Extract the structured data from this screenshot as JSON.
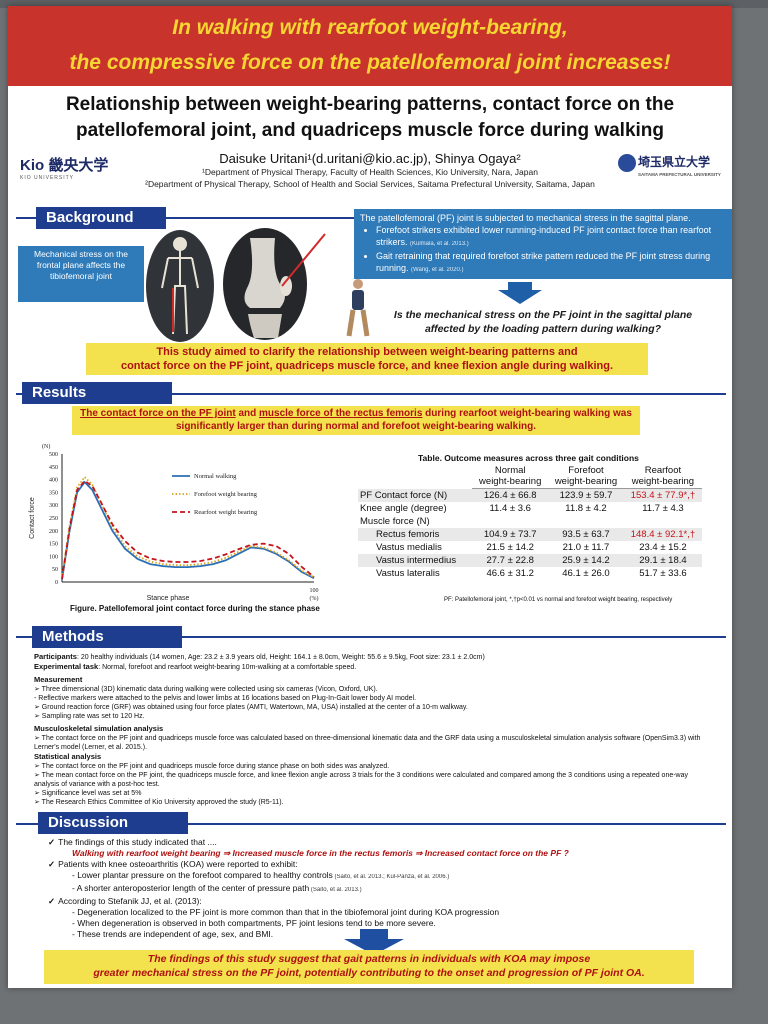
{
  "banner": {
    "line1": "In walking with rearfoot weight-bearing,",
    "line2": "the compressive force on the patellofemoral joint increases!"
  },
  "title": {
    "line1": "Relationship between weight-bearing patterns, contact force on the",
    "line2": "patellofemoral joint, and quadriceps muscle force during walking"
  },
  "authors": "Daisuke Uritani¹(d.uritani@kio.ac.jp), Shinya Ogaya²",
  "affiliations": [
    "¹Department of Physical Therapy, Faculty of Health Sciences, Kio University, Nara, Japan",
    "²Department of Physical Therapy, School of Health and Social Services, Saitama Prefectural University, Saitama, Japan"
  ],
  "logos": {
    "left": "Kio 畿央大学",
    "left_sub": "KIO UNIVERSITY",
    "right": "埼玉県立大学",
    "right_sub": "SAITAMA PREFECTURAL UNIVERSITY"
  },
  "background": {
    "heading": "Background",
    "frontal_note": "Mechanical stress on the frontal plane affects the tibiofemoral joint",
    "intro": "The patellofemoral (PF) joint is subjected to mechanical stress in the sagittal plane.",
    "bullets": [
      {
        "text": "Forefoot strikers exhibited lower running-induced PF joint contact force than rearfoot strikers.",
        "cite": "(Kulmala, et al. 2013.)"
      },
      {
        "text": "Gait retraining that required forefoot strike pattern reduced the PF joint stress during running.",
        "cite": "(Wang, et al. 2020.)"
      }
    ],
    "question_line1": "Is the mechanical stress on the PF joint in the sagittal plane",
    "question_line2": "affected by the loading pattern during walking?",
    "aim_line1": "This study aimed to clarify the relationship between weight-bearing patterns and",
    "aim_line2": "contact force on the PF joint, quadriceps muscle force, and knee flexion angle during walking."
  },
  "results": {
    "heading": "Results",
    "highlight_line1_part1": "The contact force on the PF joint",
    "highlight_line1_mid": " and ",
    "highlight_line1_part2": "muscle force of the rectus femoris",
    "highlight_line1_end": " during rearfoot weight-bearing walking was",
    "highlight_line2": "significantly larger than during normal and forefoot weight-bearing walking.",
    "figure_caption": "Figure. Patellofemoral joint contact force during the stance phase",
    "table_title": "Table. Outcome measures across three gait conditions",
    "table_note": "PF: Patellofemoral joint, *,†p<0.01 vs normal and forefoot weight bearing, respectively",
    "table": {
      "columns": [
        "Normal weight-bearing",
        "Forefoot weight-bearing",
        "Rearfoot weight-bearing"
      ],
      "column_lines": [
        [
          "Normal",
          "weight-bearing"
        ],
        [
          "Forefoot",
          "weight-bearing"
        ],
        [
          "Rearfoot",
          "weight-bearing"
        ]
      ],
      "rows": [
        {
          "label": "PF Contact force (N)",
          "values": [
            "126.4 ± 66.8",
            "123.9 ± 59.7",
            "153.4 ± 77.9*,†"
          ],
          "shade": true,
          "indent": false,
          "red": true
        },
        {
          "label": "Knee angle (degree)",
          "values": [
            "11.4 ± 3.6",
            "11.8 ± 4.2",
            "11.7 ± 4.3"
          ],
          "shade": false,
          "indent": false,
          "red": false
        },
        {
          "label": "Muscle force (N)",
          "values": [
            "",
            "",
            ""
          ],
          "shade": false,
          "indent": false,
          "red": false
        },
        {
          "label": "Rectus femoris",
          "values": [
            "104.9 ± 73.7",
            "93.5 ± 63.7",
            "148.4 ± 92.1*,†"
          ],
          "shade": true,
          "indent": true,
          "red": true
        },
        {
          "label": "Vastus medialis",
          "values": [
            "21.5 ± 14.2",
            "21.0 ± 11.7",
            "23.4 ± 15.2"
          ],
          "shade": false,
          "indent": true,
          "red": false
        },
        {
          "label": "Vastus intermedius",
          "values": [
            "27.7 ± 22.8",
            "25.9 ± 14.2",
            "29.1 ± 18.4"
          ],
          "shade": true,
          "indent": true,
          "red": false
        },
        {
          "label": "Vastus lateralis",
          "values": [
            "46.6 ± 31.2",
            "46.1 ± 26.0",
            "51.7 ± 33.6"
          ],
          "shade": false,
          "indent": true,
          "red": false
        }
      ]
    }
  },
  "chart_data": {
    "type": "line",
    "title": "",
    "xlabel": "Stance phase",
    "ylabel": "Contact force",
    "y_unit": "(N)",
    "x_unit": "(%)",
    "xlim": [
      0,
      100
    ],
    "ylim": [
      0,
      500
    ],
    "x_ticks": [
      "100"
    ],
    "y_ticks": [
      "0",
      "50",
      "100",
      "150",
      "200",
      "250",
      "300",
      "350",
      "400",
      "450",
      "500"
    ],
    "legend_position": "top-right",
    "x": [
      0,
      3,
      6,
      9,
      12,
      15,
      20,
      25,
      30,
      35,
      40,
      45,
      50,
      55,
      60,
      65,
      70,
      75,
      80,
      85,
      90,
      95,
      100
    ],
    "series": [
      {
        "name": "Normal walking",
        "color": "#2b6fb5",
        "dash": "solid",
        "values": [
          10,
          200,
          350,
          390,
          360,
          300,
          200,
          130,
          90,
          70,
          62,
          58,
          58,
          62,
          70,
          85,
          110,
          135,
          130,
          110,
          80,
          40,
          15
        ]
      },
      {
        "name": "Forefoot weight bearing",
        "color": "#d9a41a",
        "dash": "dotted",
        "values": [
          15,
          220,
          370,
          410,
          380,
          320,
          215,
          140,
          100,
          80,
          70,
          66,
          66,
          70,
          78,
          95,
          118,
          140,
          135,
          115,
          85,
          45,
          18
        ]
      },
      {
        "name": "Rearfoot weight bearing",
        "color": "#c4141b",
        "dash": "dashed",
        "values": [
          12,
          210,
          360,
          395,
          375,
          320,
          225,
          160,
          115,
          92,
          82,
          78,
          78,
          82,
          92,
          108,
          128,
          145,
          150,
          140,
          110,
          60,
          20
        ]
      }
    ]
  },
  "methods": {
    "heading": "Methods",
    "participants_label": "Participants",
    "participants": ": 20 healthy individuals (14 women, Age: 23.2 ± 3.9 years old, Height: 164.1 ± 8.0cm, Weight: 55.6 ± 9.5kg, Foot size: 23.1 ± 2.0cm)",
    "task_label": "Experimental task",
    "task": ": Normal, forefoot and rearfoot weight-bearing 10m-walking at a comfortable speed.",
    "measurement_label": "Measurement",
    "measurement": [
      "➢ Three dimensional (3D) kinematic data during walking were collected using six cameras (Vicon, Oxford, UK).",
      "   - Reflective markers were attached to the pelvis and lower limbs at 16 locations based on Plug-In-Gait lower body AI model.",
      "➢ Ground reaction force (GRF) was obtained using four force plates (AMTI, Watertown, MA, USA) installed at the center of a 10-m walkway.",
      "➢ Sampling rate was set to 120 Hz."
    ],
    "simulation_label": "Musculoskeletal simulation analysis",
    "simulation": [
      "➢ The contact force on the PF joint and quadriceps muscle force was calculated based on three-dimensional kinematic data and the GRF data using a musculoskeletal simulation analysis software (OpenSim3.3) with Lerner's model (Lerner, et al. 2015.)."
    ],
    "stats_label": "Statistical analysis",
    "stats": [
      "➢ The contact force on the PF joint and quadriceps muscle force during stance phase on both sides was analyzed.",
      "➢ The mean contact force on the PF joint, the quadriceps muscle force, and knee flexion angle across 3 trials for the 3 conditions were calculated and compared among the 3 conditions using a repeated one-way analysis of variance with a post-hoc test.",
      "➢ Significance level was set at 5%",
      "➢ The Research Ethics Committee of Kio University approved the study (R5-11)."
    ]
  },
  "discussion": {
    "heading": "Discussion",
    "p1": "The findings of this study indicated that ....",
    "p1_red": "Walking with rearfoot weight bearing ⇒ Increased muscle force in the rectus femoris ⇒ Increased contact force on the PF ?",
    "p2": "Patients with knee osteoarthritis (KOA) were reported to exhibit:",
    "p2_items": [
      {
        "text": "- Lower plantar pressure on the forefoot compared to healthy controls",
        "cite": " (Saito, et al. 2013.; Kul-Panza, et al. 2006.)"
      },
      {
        "text": "- A shorter anteroposterior length of the center of pressure path",
        "cite": " (Saito, et al. 2013.)"
      }
    ],
    "p3": "According to Stefanik JJ, et al. (2013):",
    "p3_items": [
      "- Degeneration localized to the PF joint is more common than that in the tibiofemoral joint during KOA progression",
      "- When degeneration is observed in both compartments, PF joint lesions tend to be more severe.",
      "- These trends are independent of age, sex, and BMI."
    ],
    "conclusion_line1": "The findings of this study suggest that gait patterns in individuals with KOA may impose",
    "conclusion_line2": "greater mechanical stress on the PF joint, potentially contributing to the onset and progression of PF joint OA."
  },
  "colors": {
    "banner": "#c8332b",
    "banner_text": "#f5d632",
    "section": "#1f3d8e",
    "highlight": "#f3e24e",
    "emphasis": "#b01010"
  }
}
